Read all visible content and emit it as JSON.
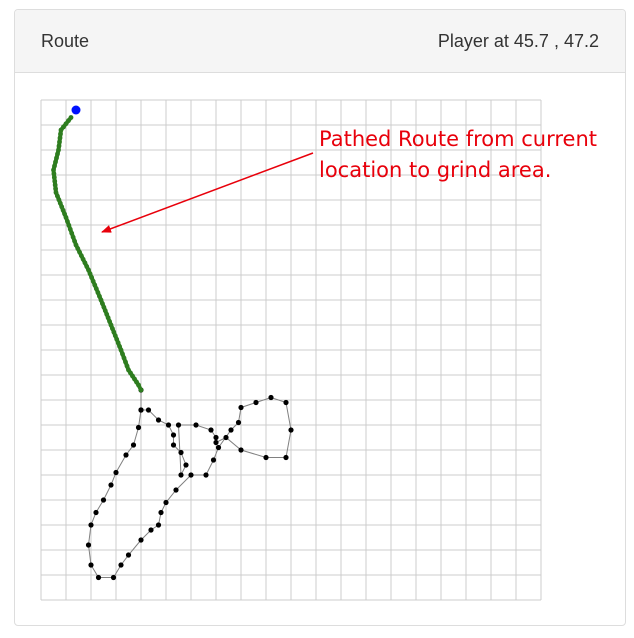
{
  "header": {
    "title": "Route",
    "player_label": "Player at",
    "player_x": "45.7",
    "player_y": "47.2"
  },
  "annotation": {
    "text": "Pathed Route from current location to grind area.",
    "color": "#e8000b"
  },
  "colors": {
    "grid": "#cccccc",
    "pathed_route": "#2e7d1f",
    "grind_route_line": "#808080",
    "grind_route_node": "#000000",
    "player": "#0011ff"
  },
  "chart_data": {
    "type": "scatter",
    "xlim": [
      0,
      20
    ],
    "ylim": [
      0,
      20
    ],
    "grid": true,
    "player": {
      "x": 1.4,
      "y": 19.6
    },
    "pathed_route": [
      [
        1.2,
        19.3
      ],
      [
        0.8,
        18.8
      ],
      [
        0.7,
        18.0
      ],
      [
        0.5,
        17.2
      ],
      [
        0.6,
        16.3
      ],
      [
        1.0,
        15.3
      ],
      [
        1.4,
        14.2
      ],
      [
        1.9,
        13.2
      ],
      [
        2.4,
        12.0
      ],
      [
        2.8,
        11.0
      ],
      [
        3.2,
        10.0
      ],
      [
        3.5,
        9.2
      ],
      [
        3.9,
        8.6
      ],
      [
        4.0,
        8.4
      ]
    ],
    "grind_route": [
      [
        4.0,
        8.4
      ],
      [
        4.0,
        7.6
      ],
      [
        4.3,
        7.6
      ],
      [
        4.7,
        7.2
      ],
      [
        5.1,
        7.0
      ],
      [
        5.3,
        6.6
      ],
      [
        5.3,
        6.2
      ],
      [
        5.6,
        5.9
      ],
      [
        5.8,
        5.4
      ],
      [
        5.6,
        5.0
      ],
      [
        5.5,
        7.0
      ],
      [
        6.2,
        7.0
      ],
      [
        6.8,
        6.8
      ],
      [
        7.0,
        6.5
      ],
      [
        7.0,
        6.3
      ],
      [
        7.4,
        6.5
      ],
      [
        8.0,
        6.0
      ],
      [
        9.0,
        5.7
      ],
      [
        9.8,
        5.7
      ],
      [
        10.0,
        6.8
      ],
      [
        9.8,
        7.9
      ],
      [
        9.2,
        8.1
      ],
      [
        8.6,
        7.9
      ],
      [
        8.0,
        7.7
      ],
      [
        7.9,
        7.1
      ],
      [
        7.6,
        6.8
      ],
      [
        7.1,
        6.1
      ],
      [
        6.9,
        5.6
      ],
      [
        6.6,
        5.0
      ],
      [
        6.0,
        5.0
      ],
      [
        5.4,
        4.4
      ],
      [
        5.0,
        3.9
      ],
      [
        4.8,
        3.5
      ],
      [
        4.7,
        3.0
      ],
      [
        4.4,
        2.8
      ],
      [
        4.0,
        2.4
      ],
      [
        3.5,
        1.8
      ],
      [
        3.2,
        1.4
      ],
      [
        2.9,
        0.9
      ],
      [
        2.3,
        0.9
      ],
      [
        2.0,
        1.4
      ],
      [
        1.9,
        2.2
      ],
      [
        2.0,
        3.0
      ],
      [
        2.2,
        3.5
      ],
      [
        2.5,
        4.0
      ],
      [
        2.8,
        4.6
      ],
      [
        3.0,
        5.1
      ],
      [
        3.4,
        5.8
      ],
      [
        3.7,
        6.2
      ],
      [
        3.9,
        6.9
      ],
      [
        4.0,
        7.6
      ]
    ]
  }
}
